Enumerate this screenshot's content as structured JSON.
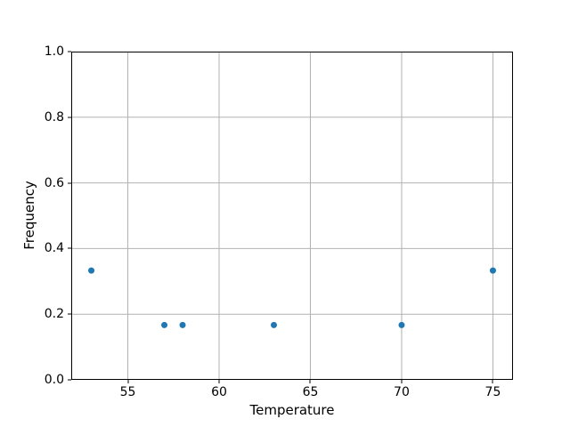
{
  "figure": {
    "background_color": "#ffffff"
  },
  "chart_data": {
    "type": "scatter",
    "title": "",
    "xlabel": "Temperature",
    "ylabel": "Frequency",
    "x": [
      53,
      57,
      58,
      63,
      70,
      75
    ],
    "y": [
      0.333,
      0.167,
      0.167,
      0.167,
      0.167,
      0.333
    ],
    "series": [
      {
        "name": "frequency-points",
        "points": [
          {
            "x": 53,
            "y": 0.333
          },
          {
            "x": 57,
            "y": 0.167
          },
          {
            "x": 58,
            "y": 0.167
          },
          {
            "x": 63,
            "y": 0.167
          },
          {
            "x": 70,
            "y": 0.167
          },
          {
            "x": 75,
            "y": 0.333
          }
        ]
      }
    ],
    "xlim": [
      51.9,
      76.1
    ],
    "ylim": [
      0.0,
      1.0
    ],
    "xticks": [
      {
        "value": 55,
        "label": "55"
      },
      {
        "value": 60,
        "label": "60"
      },
      {
        "value": 65,
        "label": "65"
      },
      {
        "value": 70,
        "label": "70"
      },
      {
        "value": 75,
        "label": "75"
      }
    ],
    "yticks": [
      {
        "value": 0.0,
        "label": "0.0"
      },
      {
        "value": 0.2,
        "label": "0.2"
      },
      {
        "value": 0.4,
        "label": "0.4"
      },
      {
        "value": 0.6,
        "label": "0.6"
      },
      {
        "value": 0.8,
        "label": "0.8"
      },
      {
        "value": 1.0,
        "label": "1.0"
      }
    ],
    "grid": true,
    "legend": false,
    "colors": {
      "marker": "#1f77b4",
      "grid": "#b2b2b2",
      "spine": "#000000",
      "text": "#000000"
    },
    "marker_radius_px": 3.5
  }
}
